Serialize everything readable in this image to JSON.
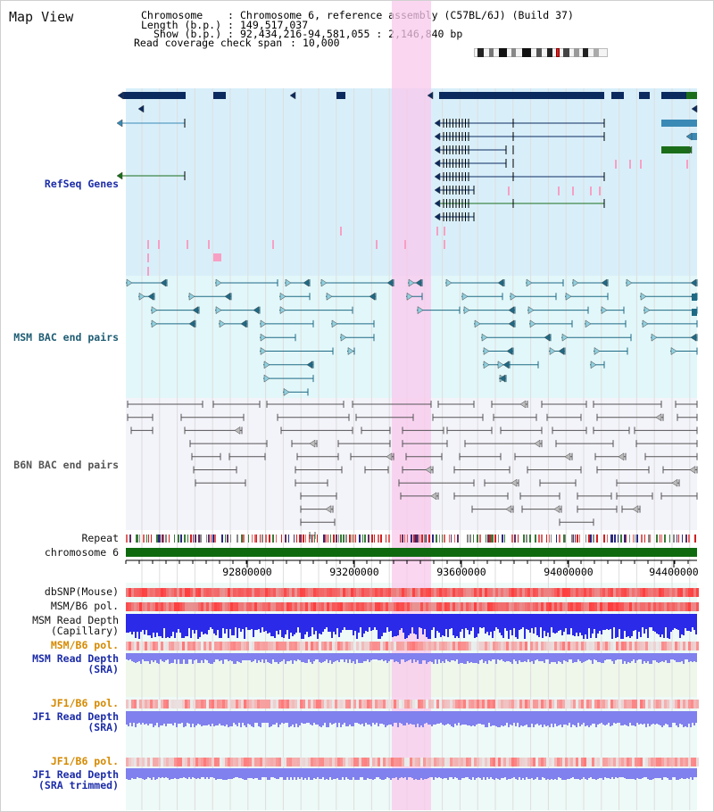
{
  "app": {
    "title": "Map View"
  },
  "info": {
    "chromosome_key": "Chromosome",
    "chromosome_value": "Chromosome 6, reference assembly (C57BL/6J) (Build 37)",
    "length_key": "Length (b.p.)",
    "length_value": "149,517,037",
    "show_key": "Show (b.p.)",
    "show_value": "92,434,216-94,581,055 : 2,146,840 bp",
    "coverage_key": "Read coverage check span",
    "coverage_value": "10,000"
  },
  "tracks": {
    "refseq": "RefSeq Genes",
    "msm_bac": "MSM BAC end pairs",
    "b6n_bac": "B6N BAC end pairs",
    "repeat": "Repeat",
    "chromosome": "chromosome 6",
    "dbsnp": "dbSNP(Mouse)",
    "msm_b6_pol": "MSM/B6 pol.",
    "msm_read_depth_cap_1": "MSM Read Depth",
    "msm_read_depth_cap_2": "(Capillary)",
    "msm_b6_pol_sra": "MSM/B6 pol.",
    "msm_read_depth_sra_1": "MSM Read Depth",
    "msm_read_depth_sra_2": "(SRA)",
    "jf1_b6_pol": "JF1/B6 pol.",
    "jf1_read_depth_1": "JF1 Read Depth",
    "jf1_read_depth_2": "(SRA)",
    "jf1_b6_pol_trim": "JF1/B6 pol.",
    "jf1_read_depth_trim_1": "JF1 Read Depth",
    "jf1_read_depth_trim_2": "(SRA trimmed)"
  },
  "axis": {
    "ticks": [
      "92800000",
      "93200000",
      "93600000",
      "94000000",
      "94400000"
    ],
    "range": [
      92434216,
      94581055
    ]
  },
  "colors": {
    "highlight": "#f9c8ec",
    "refseq_bg": "#d8effa",
    "msm_bg": "#e2f7f9",
    "b6n_bg": "#f3f3fa",
    "gene_dark": "#0b2a5e",
    "gene_teal": "#3a8ab5",
    "gene_green": "#1a6e1a",
    "chromosome_bar": "#0f6a0f",
    "msm_bac": "#1e6a86",
    "b6n_bac": "#555555",
    "coverage_blue": "#2a2ae8",
    "sra_blue": "#8080ee",
    "pol_red": "#ef5050"
  }
}
